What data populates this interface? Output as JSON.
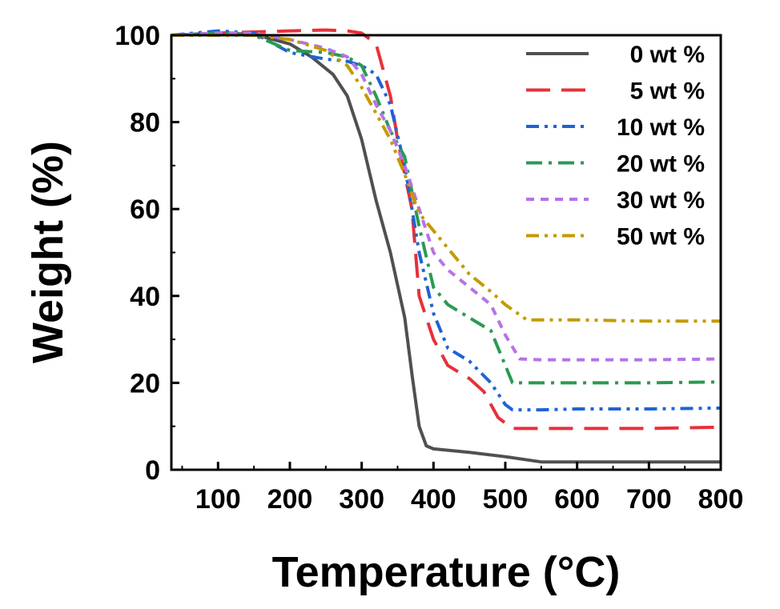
{
  "chart_data": {
    "type": "line",
    "xlabel": "Temperature (°C)",
    "ylabel": "Weight  (%)",
    "xlim": [
      35,
      800
    ],
    "ylim": [
      0,
      100
    ],
    "xticks": [
      100,
      200,
      300,
      400,
      500,
      600,
      700,
      800
    ],
    "yticks": [
      0,
      20,
      40,
      60,
      80,
      100
    ],
    "x_tick_labels": [
      "100",
      "200",
      "300",
      "400",
      "500",
      "600",
      "700",
      "800"
    ],
    "y_tick_labels": [
      "0",
      "20",
      "40",
      "60",
      "80",
      "100"
    ],
    "legend_position": "top-right",
    "grid": false,
    "series": [
      {
        "name": "0 wt %",
        "color": "#505050",
        "dash": "solid",
        "x": [
          35,
          100,
          150,
          200,
          230,
          260,
          280,
          300,
          320,
          340,
          360,
          370,
          380,
          390,
          400,
          420,
          450,
          500,
          550,
          600,
          700,
          800
        ],
        "y": [
          100,
          100.5,
          100.2,
          98,
          95,
          91,
          86,
          76,
          62,
          50,
          35,
          22,
          10,
          5.5,
          4.8,
          4.5,
          4.0,
          3.0,
          1.8,
          1.8,
          1.8,
          1.8
        ]
      },
      {
        "name": "5 wt %",
        "color": "#e8303a",
        "dash": "long-dash",
        "x": [
          35,
          100,
          200,
          250,
          280,
          300,
          320,
          340,
          350,
          360,
          370,
          380,
          400,
          420,
          450,
          470,
          490,
          510,
          550,
          600,
          700,
          800
        ],
        "y": [
          100,
          100.5,
          101,
          101.2,
          101,
          100.5,
          98,
          86,
          76,
          68,
          60,
          40,
          30,
          24,
          21,
          18,
          12,
          9.5,
          9.5,
          9.5,
          9.5,
          9.8
        ]
      },
      {
        "name": "10 wt %",
        "color": "#1f63d6",
        "dash": "dash-dot-dot",
        "x": [
          35,
          100,
          150,
          200,
          250,
          280,
          300,
          320,
          340,
          360,
          380,
          400,
          420,
          450,
          480,
          500,
          510,
          550,
          600,
          700,
          800
        ],
        "y": [
          100,
          101,
          100.5,
          96,
          94.5,
          94,
          93,
          91,
          84,
          70,
          50,
          36,
          28,
          25,
          20,
          15,
          13.8,
          13.8,
          14,
          14,
          14.2
        ]
      },
      {
        "name": "20 wt %",
        "color": "#2a9a52",
        "dash": "dash-dot",
        "x": [
          35,
          100,
          150,
          200,
          250,
          280,
          300,
          320,
          340,
          360,
          380,
          400,
          420,
          450,
          480,
          500,
          510,
          550,
          600,
          700,
          800
        ],
        "y": [
          100,
          100.5,
          100,
          96.5,
          96,
          95,
          93,
          86,
          78,
          72,
          56,
          42,
          38,
          35,
          32,
          24,
          20,
          20,
          20,
          20,
          20.2
        ]
      },
      {
        "name": "30 wt %",
        "color": "#b573e6",
        "dash": "short-dash",
        "x": [
          35,
          100,
          150,
          200,
          250,
          280,
          300,
          320,
          340,
          360,
          380,
          400,
          420,
          450,
          480,
          500,
          520,
          550,
          600,
          700,
          800
        ],
        "y": [
          100,
          100.5,
          100.5,
          99,
          97,
          95,
          91,
          84,
          78,
          70,
          60,
          50,
          46,
          42,
          38,
          31,
          25.5,
          25.3,
          25.3,
          25.3,
          25.5
        ]
      },
      {
        "name": "50 wt %",
        "color": "#c49a00",
        "dash": "dash-dot-dot",
        "x": [
          35,
          100,
          150,
          200,
          250,
          280,
          300,
          320,
          340,
          360,
          380,
          400,
          420,
          450,
          480,
          500,
          530,
          550,
          600,
          700,
          800
        ],
        "y": [
          100,
          100,
          100,
          99,
          96.5,
          93,
          88,
          82,
          76,
          68,
          59,
          55,
          51,
          45,
          41,
          38,
          34.5,
          34.5,
          34.5,
          34.2,
          34.2
        ]
      }
    ]
  }
}
